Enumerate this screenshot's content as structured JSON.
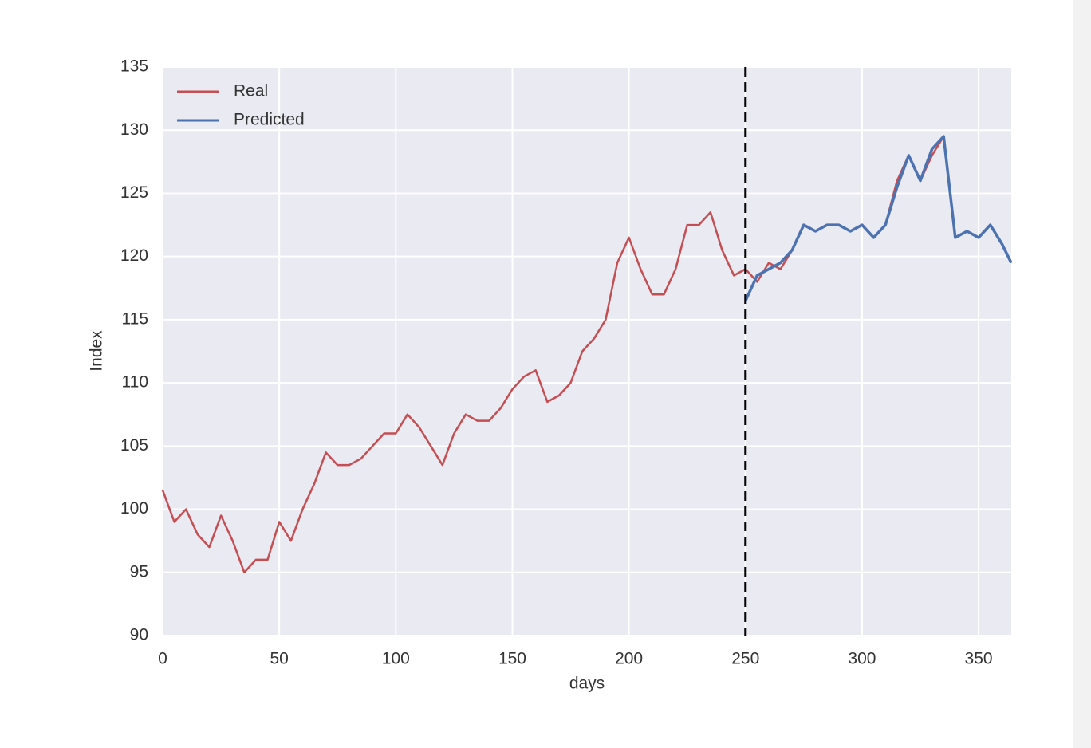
{
  "chart_data": {
    "type": "line",
    "x_label": "days",
    "y_label": "Index",
    "x": [
      0,
      5,
      10,
      15,
      20,
      25,
      30,
      35,
      40,
      45,
      50,
      55,
      60,
      65,
      70,
      75,
      80,
      85,
      90,
      95,
      100,
      105,
      110,
      115,
      120,
      125,
      130,
      135,
      140,
      145,
      150,
      155,
      160,
      165,
      170,
      175,
      180,
      185,
      190,
      195,
      200,
      205,
      210,
      215,
      220,
      225,
      230,
      235,
      240,
      245,
      250,
      255,
      260,
      265,
      270,
      275,
      280,
      285,
      290,
      295,
      300,
      305,
      310,
      315,
      320,
      325,
      330,
      335,
      340,
      345,
      350,
      355,
      360,
      364
    ],
    "series": [
      {
        "name": "Real",
        "color": "#c44e52",
        "values": [
          101.5,
          99,
          100,
          98,
          97,
          99.5,
          97.5,
          95,
          96,
          96,
          99,
          97.5,
          100,
          102,
          104.5,
          103.5,
          103.5,
          104,
          105,
          106,
          106,
          107.5,
          106.5,
          105,
          103.5,
          106,
          107.5,
          107,
          107,
          108,
          109.5,
          110.5,
          111,
          108.5,
          109,
          110,
          112.5,
          113.5,
          115,
          119.5,
          121.5,
          119,
          117,
          117,
          119,
          122.5,
          122.5,
          123.5,
          120.5,
          118.5,
          119,
          118,
          119.5,
          119,
          120.5,
          122.5,
          122,
          122.5,
          122.5,
          122,
          122.5,
          121.5,
          122.5,
          126,
          128,
          126,
          128,
          129.5,
          121.5,
          122,
          121.5,
          122.5,
          121,
          119.5
        ]
      },
      {
        "name": "Predicted",
        "color": "#4c72b0",
        "values": [
          null,
          null,
          null,
          null,
          null,
          null,
          null,
          null,
          null,
          null,
          null,
          null,
          null,
          null,
          null,
          null,
          null,
          null,
          null,
          null,
          null,
          null,
          null,
          null,
          null,
          null,
          null,
          null,
          null,
          null,
          null,
          null,
          null,
          null,
          null,
          null,
          null,
          null,
          null,
          null,
          null,
          null,
          null,
          null,
          null,
          null,
          null,
          null,
          null,
          null,
          116.5,
          118.5,
          119,
          119.5,
          120.5,
          122.5,
          122,
          122.5,
          122.5,
          122,
          122.5,
          121.5,
          122.5,
          125.5,
          128,
          126,
          128.5,
          129.5,
          121.5,
          122,
          121.5,
          122.5,
          121,
          119.5
        ]
      }
    ],
    "vline": 250,
    "xlim": [
      0,
      364
    ],
    "ylim": [
      90,
      135
    ],
    "xticks": [
      0,
      50,
      100,
      150,
      200,
      250,
      300,
      350
    ],
    "yticks": [
      90,
      95,
      100,
      105,
      110,
      115,
      120,
      125,
      130,
      135
    ],
    "grid": true,
    "legend": "upper left"
  }
}
